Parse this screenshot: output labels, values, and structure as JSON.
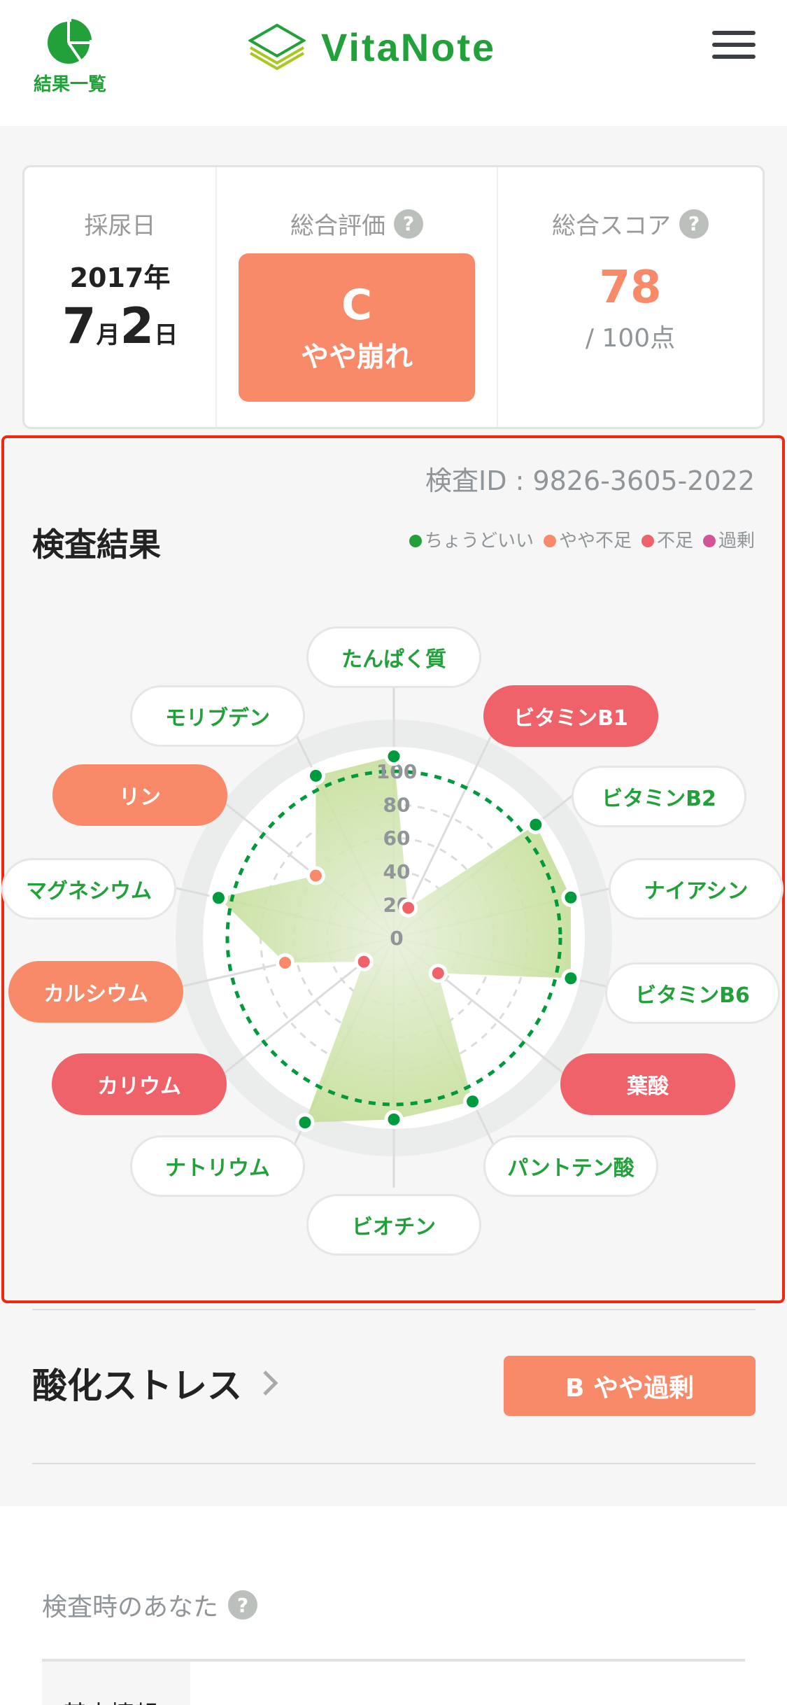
{
  "header": {
    "results_link": "結果一覧",
    "app_name": "VitaNote",
    "menu_icon": "hamburger-icon"
  },
  "summary": {
    "date_label": "採尿日",
    "year": "2017年",
    "month": "7",
    "month_unit": "月",
    "day": "2",
    "day_unit": "日",
    "eval_label": "総合評価",
    "eval_grade": "C",
    "eval_text": "やや崩れ",
    "score_label": "総合スコア",
    "score": "78",
    "score_max": "/ 100点",
    "help": "?"
  },
  "result": {
    "test_id": "検査ID : 9826-3605-2022",
    "title": "検査結果",
    "legend": [
      {
        "label": "ちょうどいい",
        "color": "#22a03a"
      },
      {
        "label": "やや不足",
        "color": "#f98a69"
      },
      {
        "label": "不足",
        "color": "#f0626a"
      },
      {
        "label": "過剰",
        "color": "#d4549a"
      }
    ]
  },
  "chart_data": {
    "type": "radar",
    "ticks": [
      "0",
      "20",
      "40",
      "60",
      "80",
      "100"
    ],
    "rlim": [
      0,
      100
    ],
    "reference_value": 100,
    "axes": [
      {
        "label": "たんぱく質",
        "value": 109,
        "status": "ok"
      },
      {
        "label": "ビタミンB1",
        "value": 20,
        "status": "deficient"
      },
      {
        "label": "ビタミンB2",
        "value": 109,
        "status": "ok"
      },
      {
        "label": "ナイアシン",
        "value": 109,
        "status": "ok"
      },
      {
        "label": "ビタミンB6",
        "value": 109,
        "status": "ok"
      },
      {
        "label": "葉酸",
        "value": 34,
        "status": "deficient"
      },
      {
        "label": "パントテン酸",
        "value": 109,
        "status": "ok"
      },
      {
        "label": "ビオチン",
        "value": 109,
        "status": "ok"
      },
      {
        "label": "ナトリウム",
        "value": 123,
        "status": "ok"
      },
      {
        "label": "カリウム",
        "value": 23,
        "status": "deficient"
      },
      {
        "label": "カルシウム",
        "value": 67,
        "status": "slightly_low"
      },
      {
        "label": "マグネシウム",
        "value": 108,
        "status": "ok"
      },
      {
        "label": "リン",
        "value": 60,
        "status": "slightly_low"
      },
      {
        "label": "モリブデン",
        "value": 108,
        "status": "ok"
      }
    ]
  },
  "oxidative": {
    "title": "酸化ストレス",
    "badge": "B やや過剰"
  },
  "you": {
    "title": "検査時のあなた",
    "help": "?",
    "first_row": "基本情報"
  }
}
